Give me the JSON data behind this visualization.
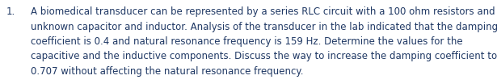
{
  "number": "1.",
  "lines": [
    "A biomedical transducer can be represented by a series RLC circuit with a 100 ohm resistors and",
    "unknown capacitor and inductor. Analysis of the transducer in the lab indicated that the damping",
    "coefficient is 0.4 and natural resonance frequency is 159 Hz. Determine the values for the",
    "capacitive and the inductive components. Discuss the way to increase the damping coefficient to",
    "0.707 without affecting the natural resonance frequency."
  ],
  "text_color": "#1F3864",
  "background_color": "#FFFFFF",
  "font_size": 8.5,
  "font_family": "DejaVu Sans",
  "fig_width": 6.15,
  "fig_height": 1.04,
  "dpi": 100
}
